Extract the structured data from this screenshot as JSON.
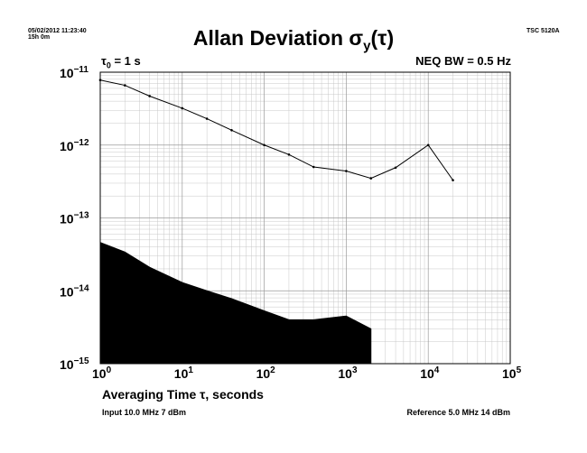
{
  "header": {
    "datetime": "05/02/2012 11:23:40",
    "duration": "15h 0m",
    "instrument": "TSC 5120A"
  },
  "title": {
    "text": "Allan Deviation ",
    "sigma": "σ",
    "sub_y": "y",
    "paren_open": "(",
    "tau": "τ",
    "paren_close": ")"
  },
  "tau0": {
    "sym": "τ",
    "sub": "0",
    "rest": " = 1 s"
  },
  "neq_bw": "NEQ BW = 0.5 Hz",
  "xlabel": "Averaging Time τ, seconds",
  "footer": {
    "input": "Input 10.0 MHz 7 dBm",
    "reference": "Reference 5.0 MHz 14 dBm"
  },
  "chart_data": {
    "type": "line",
    "x_scale": "log",
    "y_scale": "log",
    "xlim": [
      1,
      100000
    ],
    "ylim": [
      1e-15,
      1e-11
    ],
    "x_ticks": [
      {
        "value": 1,
        "base": "10",
        "exp": "0"
      },
      {
        "value": 10,
        "base": "10",
        "exp": "1"
      },
      {
        "value": 100,
        "base": "10",
        "exp": "2"
      },
      {
        "value": 1000,
        "base": "10",
        "exp": "3"
      },
      {
        "value": 10000,
        "base": "10",
        "exp": "4"
      },
      {
        "value": 100000,
        "base": "10",
        "exp": "5"
      }
    ],
    "y_ticks": [
      {
        "value": 1e-11,
        "base": "10",
        "exp": "−11"
      },
      {
        "value": 1e-12,
        "base": "10",
        "exp": "−12"
      },
      {
        "value": 1e-13,
        "base": "10",
        "exp": "−13"
      },
      {
        "value": 1e-14,
        "base": "10",
        "exp": "−14"
      },
      {
        "value": 1e-15,
        "base": "10",
        "exp": "−15"
      }
    ],
    "grid": true,
    "series": [
      {
        "type": "line",
        "color": "#000000",
        "x": [
          1,
          2,
          4,
          10,
          20,
          40,
          100,
          200,
          400,
          1000,
          2000,
          4000,
          10000,
          20000
        ],
        "y": [
          7.8e-12,
          6.6e-12,
          4.7e-12,
          3.2e-12,
          2.3e-12,
          1.6e-12,
          1e-12,
          7.4e-13,
          5e-13,
          4.4e-13,
          3.5e-13,
          4.9e-13,
          1e-12,
          3.3e-13
        ]
      },
      {
        "type": "area",
        "color": "#000000",
        "x": [
          1,
          2,
          4,
          10,
          20,
          40,
          100,
          200,
          400,
          1000,
          2000
        ],
        "y": [
          4.6e-14,
          3.4e-14,
          2.1e-14,
          1.3e-14,
          1e-14,
          7.8e-15,
          5.3e-15,
          4e-15,
          4e-15,
          4.5e-15,
          3e-15
        ]
      }
    ]
  }
}
